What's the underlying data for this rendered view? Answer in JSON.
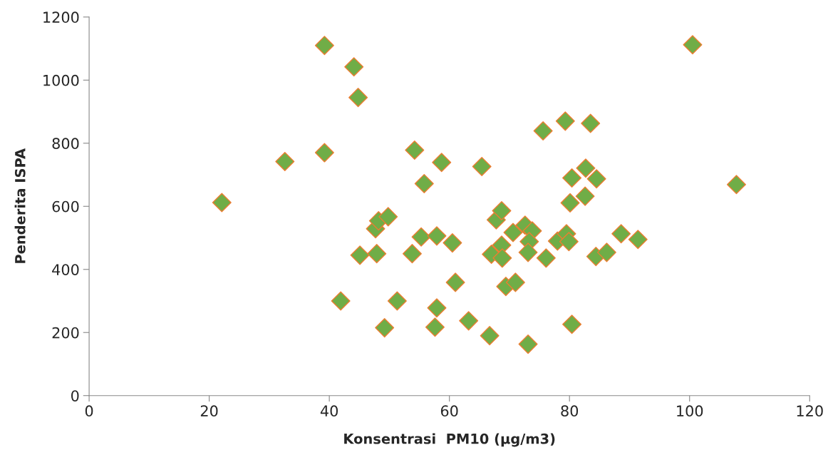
{
  "chart_data": {
    "type": "scatter",
    "xlabel": "Konsentrasi  PM10 (µg/m3)",
    "ylabel": "Penderita ISPA",
    "x": [
      22.1,
      32.6,
      39.2,
      39.2,
      44.1,
      44.8,
      41.9,
      45.1,
      47.9,
      47.7,
      48.2,
      49.8,
      49.2,
      51.3,
      53.8,
      55.3,
      54.2,
      55.8,
      58.7,
      57.9,
      57.9,
      57.6,
      60.5,
      61,
      63.2,
      65.4,
      66.7,
      67,
      67.8,
      68.7,
      68.7,
      68.8,
      69.4,
      71,
      70.6,
      72.6,
      73.8,
      73.3,
      73.1,
      73.1,
      75.6,
      76.1,
      78,
      79.3,
      79.5,
      79.9,
      80.4,
      80.4,
      80.1,
      82.7,
      82.6,
      83.5,
      84.5,
      84.4,
      86.2,
      88.6,
      91.4,
      100.5,
      107.8
    ],
    "series": [
      {
        "color": "#70ad47",
        "values": [
          612,
          742,
          1110,
          770,
          1042,
          945,
          300,
          445,
          450,
          529,
          554,
          567,
          215,
          300,
          450,
          503,
          778,
          672,
          739,
          506,
          278,
          217,
          484,
          359,
          237,
          726,
          190,
          448,
          557,
          586,
          477,
          436,
          346,
          359,
          517,
          540,
          522,
          488,
          454,
          163,
          839,
          436,
          490,
          870,
          513,
          488,
          226,
          690,
          611,
          721,
          632,
          863,
          687,
          441,
          454,
          513,
          495,
          1112,
          669
        ]
      }
    ],
    "marker": "diamond",
    "grid": false,
    "legend": false,
    "xlim": [
      0,
      120
    ],
    "xticks": [
      0,
      20,
      40,
      60,
      80,
      100,
      120
    ],
    "ylim": [
      0,
      1200
    ],
    "yticks": [
      0,
      200,
      400,
      600,
      800,
      1000,
      1200
    ]
  }
}
